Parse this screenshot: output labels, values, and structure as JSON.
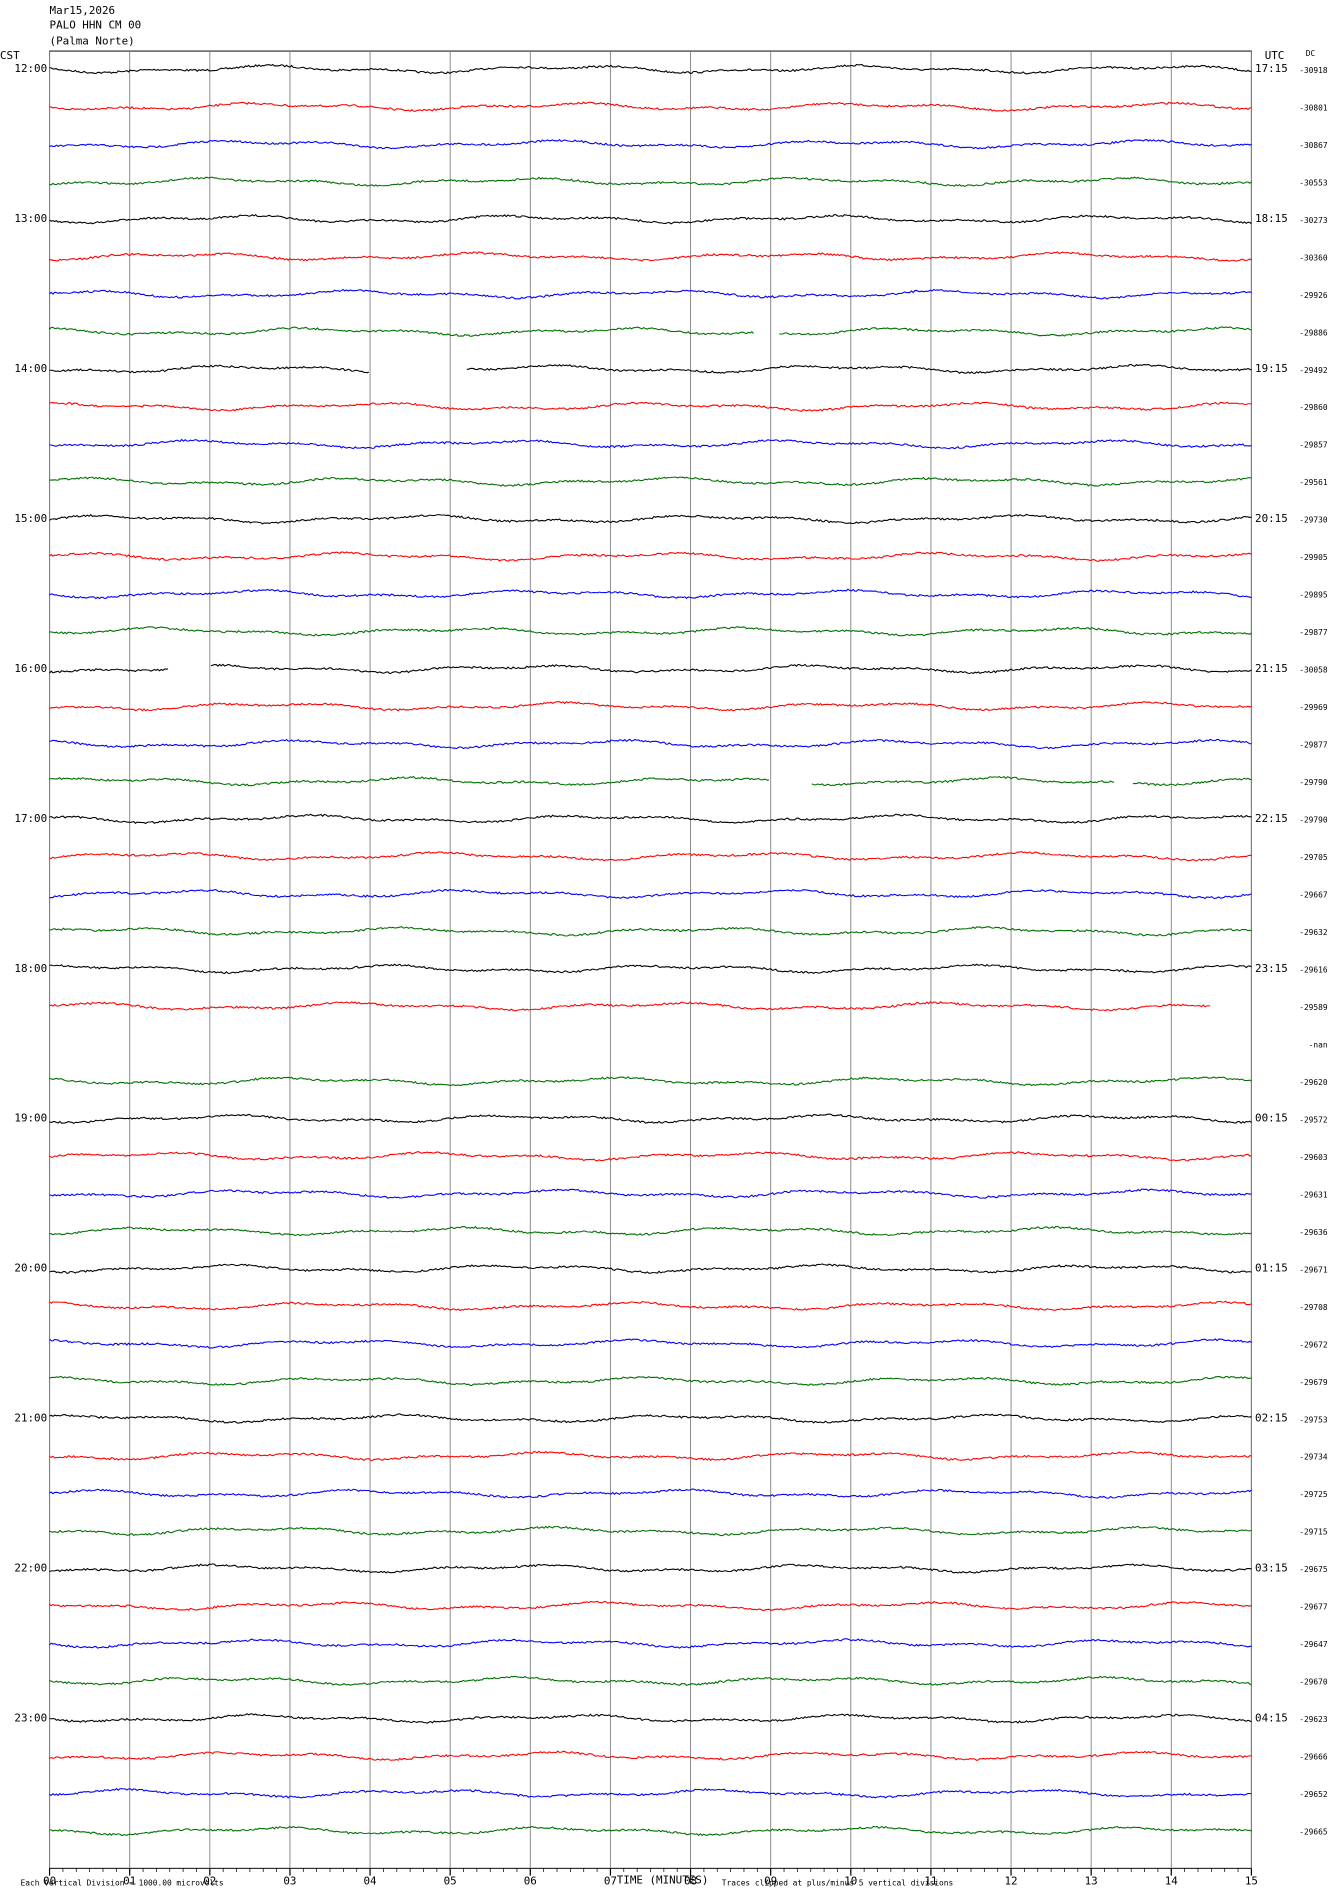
{
  "chart_data": {
    "type": "helicorder",
    "header": {
      "date": "Mar15,2026",
      "station": "PALO HHN CM 00",
      "location": "(Palma Norte)"
    },
    "left_axis_label": "CST",
    "right_axis_label": "UTC",
    "dc_label": "DC",
    "left_times": [
      "12:00",
      "13:00",
      "14:00",
      "15:00",
      "16:00",
      "17:00",
      "18:00",
      "19:00",
      "20:00",
      "21:00",
      "22:00",
      "23:00"
    ],
    "right_times": [
      "17:15",
      "18:15",
      "19:15",
      "20:15",
      "21:15",
      "22:15",
      "23:15",
      "00:15",
      "01:15",
      "02:15",
      "03:15",
      "04:15"
    ],
    "dc_values": [
      "-30918",
      "-30801",
      "-30867",
      "-30553",
      "-30273",
      "-30360",
      "-29926",
      "-29886",
      "-29492",
      "-29860",
      "-29857",
      "-29561",
      "-29730",
      "-29905",
      "-29895",
      "-29877",
      "-30058",
      "-29969",
      "-29877",
      "-29790",
      "-29790",
      "-29705",
      "-29667",
      "-29632",
      "-29616",
      "-29589",
      "-nan",
      "-29620",
      "-29572",
      "-29603",
      "-29631",
      "-29636",
      "-29671",
      "-29708",
      "-29672",
      "-29679",
      "-29753",
      "-29734",
      "-29725",
      "-29715",
      "-29675",
      "-29677",
      "-29647",
      "-29670",
      "-29623",
      "-29666",
      "-29652",
      "-29665"
    ],
    "trace_colors": [
      "#000000",
      "#ff0000",
      "#0000ff",
      "#007000"
    ],
    "gaps": [
      [
        7,
        8.8,
        9.1
      ],
      [
        8,
        4.0,
        5.2
      ],
      [
        16,
        1.5,
        2.0
      ],
      [
        19,
        9.0,
        9.5
      ],
      [
        19,
        13.3,
        13.5
      ],
      [
        25,
        14.5,
        15
      ],
      [
        26,
        0,
        15
      ]
    ],
    "xlim": [
      0,
      15
    ],
    "xticks": [
      {
        "value": 0,
        "label": "00"
      },
      {
        "value": 1,
        "label": "01"
      },
      {
        "value": 2,
        "label": "02"
      },
      {
        "value": 3,
        "label": "03"
      },
      {
        "value": 4,
        "label": "04"
      },
      {
        "value": 5,
        "label": "05"
      },
      {
        "value": 6,
        "label": "06"
      },
      {
        "value": 7,
        "label": "07"
      },
      {
        "value": 8,
        "label": "08"
      },
      {
        "value": 9,
        "label": "09"
      },
      {
        "value": 10,
        "label": "10"
      },
      {
        "value": 11,
        "label": "11"
      },
      {
        "value": 12,
        "label": "12"
      },
      {
        "value": 13,
        "label": "13"
      },
      {
        "value": 14,
        "label": "14"
      },
      {
        "value": 15,
        "label": "15"
      }
    ],
    "x_axis_label": "TIME (MINUTES)",
    "footer_left": "Each Vertical Division = 1000.00 microvolts",
    "footer_right": "Traces clipped at plus/minus 5 vertical divisions"
  }
}
